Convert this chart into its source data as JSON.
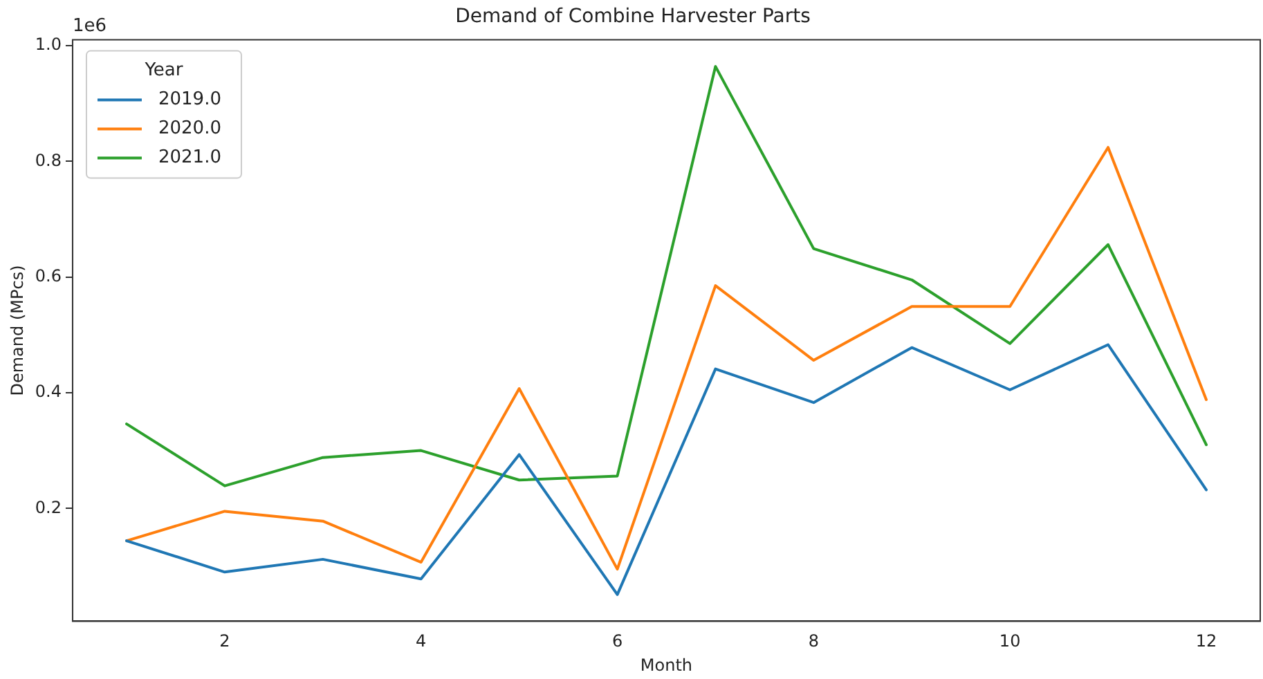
{
  "chart_data": {
    "type": "line",
    "title": "Demand of Combine Harvester Parts",
    "xlabel": "Month",
    "ylabel": "Demand (MPcs)",
    "legend_title": "Year",
    "annotations": [
      "1e6"
    ],
    "x": [
      1,
      2,
      3,
      4,
      5,
      6,
      7,
      8,
      9,
      10,
      11,
      12
    ],
    "series": [
      {
        "name": "2019.0",
        "color": "#1f77b4",
        "values": [
          0.144,
          0.09,
          0.112,
          0.078,
          0.293,
          0.051,
          0.441,
          0.383,
          0.478,
          0.405,
          0.483,
          0.232
        ]
      },
      {
        "name": "2020.0",
        "color": "#ff7f0e",
        "values": [
          0.144,
          0.195,
          0.178,
          0.107,
          0.407,
          0.095,
          0.585,
          0.456,
          0.549,
          0.549,
          0.824,
          0.388
        ]
      },
      {
        "name": "2021.0",
        "color": "#2ca02c",
        "values": [
          0.346,
          0.239,
          0.288,
          0.3,
          0.249,
          0.256,
          0.964,
          0.649,
          0.595,
          0.485,
          0.656,
          0.31
        ]
      }
    ],
    "xlim": [
      0.45,
      12.55
    ],
    "xticks": [
      2,
      4,
      6,
      8,
      10,
      12
    ],
    "ylim": [
      0.005,
      1.01
    ],
    "yticks": [
      0.2,
      0.4,
      0.6,
      0.8,
      {
        "value": 1.0,
        "label": "1.0"
      }
    ],
    "grid": false,
    "legend": "top left",
    "marker": "none",
    "line_style": "solid"
  }
}
